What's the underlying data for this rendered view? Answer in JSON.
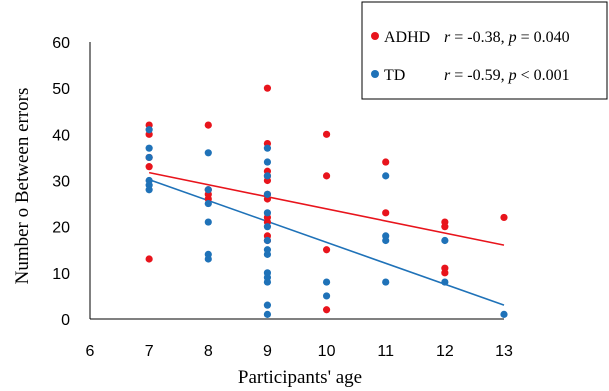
{
  "chart_data": {
    "type": "scatter",
    "xlabel": "Participants' age",
    "ylabel": "Number o Between errors",
    "xlim": [
      6,
      13
    ],
    "ylim": [
      0,
      60
    ],
    "xticks": [
      6,
      7,
      8,
      9,
      10,
      11,
      12,
      13
    ],
    "yticks": [
      0,
      10,
      20,
      30,
      40,
      50,
      60
    ],
    "grid": false,
    "legend_position": "top-right",
    "series": [
      {
        "name": "ADHD",
        "color": "#e8141c",
        "stats_r": "r = -0.38",
        "stats_p": "p = 0.040",
        "trendline": {
          "x": [
            7,
            13
          ],
          "y": [
            31.7,
            16
          ]
        },
        "points": [
          {
            "x": 7,
            "y": 42
          },
          {
            "x": 7,
            "y": 40
          },
          {
            "x": 7,
            "y": 35
          },
          {
            "x": 7,
            "y": 33
          },
          {
            "x": 7,
            "y": 13
          },
          {
            "x": 8,
            "y": 42
          },
          {
            "x": 8,
            "y": 28
          },
          {
            "x": 8,
            "y": 27
          },
          {
            "x": 8,
            "y": 26
          },
          {
            "x": 9,
            "y": 50
          },
          {
            "x": 9,
            "y": 38
          },
          {
            "x": 9,
            "y": 32
          },
          {
            "x": 9,
            "y": 31
          },
          {
            "x": 9,
            "y": 30
          },
          {
            "x": 9,
            "y": 27
          },
          {
            "x": 9,
            "y": 26
          },
          {
            "x": 9,
            "y": 22
          },
          {
            "x": 9,
            "y": 21
          },
          {
            "x": 9,
            "y": 18
          },
          {
            "x": 9,
            "y": 17
          },
          {
            "x": 10,
            "y": 40
          },
          {
            "x": 10,
            "y": 31
          },
          {
            "x": 10,
            "y": 15
          },
          {
            "x": 10,
            "y": 2
          },
          {
            "x": 11,
            "y": 34
          },
          {
            "x": 11,
            "y": 23
          },
          {
            "x": 12,
            "y": 21
          },
          {
            "x": 12,
            "y": 20
          },
          {
            "x": 12,
            "y": 11
          },
          {
            "x": 12,
            "y": 10
          },
          {
            "x": 13,
            "y": 22
          }
        ]
      },
      {
        "name": "TD",
        "color": "#1f72b8",
        "stats_r": "r = -0.59",
        "stats_p": "p < 0.001",
        "trendline": {
          "x": [
            7,
            13
          ],
          "y": [
            30.2,
            3
          ]
        },
        "points": [
          {
            "x": 7,
            "y": 41
          },
          {
            "x": 7,
            "y": 37
          },
          {
            "x": 7,
            "y": 35
          },
          {
            "x": 7,
            "y": 30
          },
          {
            "x": 7,
            "y": 29
          },
          {
            "x": 7,
            "y": 28
          },
          {
            "x": 8,
            "y": 36
          },
          {
            "x": 8,
            "y": 28
          },
          {
            "x": 8,
            "y": 25
          },
          {
            "x": 8,
            "y": 21
          },
          {
            "x": 8,
            "y": 14
          },
          {
            "x": 8,
            "y": 13
          },
          {
            "x": 9,
            "y": 37
          },
          {
            "x": 9,
            "y": 34
          },
          {
            "x": 9,
            "y": 31
          },
          {
            "x": 9,
            "y": 27
          },
          {
            "x": 9,
            "y": 23
          },
          {
            "x": 9,
            "y": 20
          },
          {
            "x": 9,
            "y": 17
          },
          {
            "x": 9,
            "y": 15
          },
          {
            "x": 9,
            "y": 14
          },
          {
            "x": 9,
            "y": 10
          },
          {
            "x": 9,
            "y": 9
          },
          {
            "x": 9,
            "y": 8
          },
          {
            "x": 9,
            "y": 3
          },
          {
            "x": 9,
            "y": 1
          },
          {
            "x": 10,
            "y": 8
          },
          {
            "x": 10,
            "y": 5
          },
          {
            "x": 11,
            "y": 31
          },
          {
            "x": 11,
            "y": 18
          },
          {
            "x": 11,
            "y": 17
          },
          {
            "x": 11,
            "y": 8
          },
          {
            "x": 12,
            "y": 17
          },
          {
            "x": 12,
            "y": 8
          },
          {
            "x": 13,
            "y": 1
          }
        ]
      }
    ]
  }
}
